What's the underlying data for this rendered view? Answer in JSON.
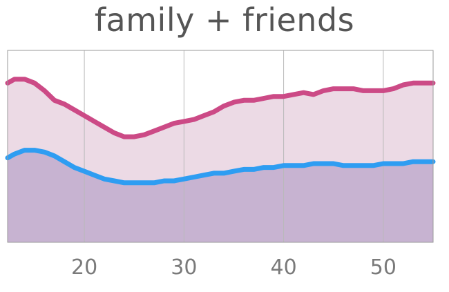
{
  "chart_data": {
    "type": "area",
    "title": "family + friends",
    "xlabel": "",
    "ylabel": "",
    "xlim": [
      12.3,
      55
    ],
    "ylim": [
      0,
      1
    ],
    "xticks": [
      20,
      30,
      40,
      50
    ],
    "grid": true,
    "colors": {
      "upper_line": "#cc4a86",
      "upper_fill": "#ecdae5",
      "lower_line": "#2e9df2",
      "lower_fill": "#c7b3d1",
      "grid": "#b9b9b9",
      "frame": "#9a9a9a"
    },
    "x": [
      12.3,
      13,
      14,
      15,
      16,
      17,
      18,
      19,
      20,
      21,
      22,
      23,
      24,
      25,
      26,
      27,
      28,
      29,
      30,
      31,
      32,
      33,
      34,
      35,
      36,
      37,
      38,
      39,
      40,
      41,
      42,
      43,
      44,
      45,
      46,
      47,
      48,
      49,
      50,
      51,
      52,
      53,
      54,
      55
    ],
    "series": [
      {
        "values": [
          0.83,
          0.85,
          0.85,
          0.83,
          0.79,
          0.74,
          0.72,
          0.69,
          0.66,
          0.63,
          0.6,
          0.57,
          0.55,
          0.55,
          0.56,
          0.58,
          0.6,
          0.62,
          0.63,
          0.64,
          0.66,
          0.68,
          0.71,
          0.73,
          0.74,
          0.74,
          0.75,
          0.76,
          0.76,
          0.77,
          0.78,
          0.77,
          0.79,
          0.8,
          0.8,
          0.8,
          0.79,
          0.79,
          0.79,
          0.8,
          0.82,
          0.83,
          0.83,
          0.83
        ]
      },
      {
        "values": [
          0.44,
          0.46,
          0.48,
          0.48,
          0.47,
          0.45,
          0.42,
          0.39,
          0.37,
          0.35,
          0.33,
          0.32,
          0.31,
          0.31,
          0.31,
          0.31,
          0.32,
          0.32,
          0.33,
          0.34,
          0.35,
          0.36,
          0.36,
          0.37,
          0.38,
          0.38,
          0.39,
          0.39,
          0.4,
          0.4,
          0.4,
          0.41,
          0.41,
          0.41,
          0.4,
          0.4,
          0.4,
          0.4,
          0.41,
          0.41,
          0.41,
          0.42,
          0.42,
          0.42
        ]
      }
    ]
  }
}
